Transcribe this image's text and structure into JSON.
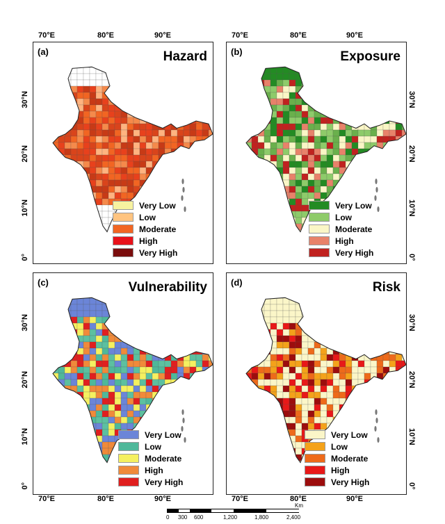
{
  "figure": {
    "x_ticks": [
      "70°E",
      "80°E",
      "90°E"
    ],
    "y_ticks": [
      "30°N",
      "20°N",
      "10°N",
      "0°"
    ],
    "panels": [
      {
        "id": "a",
        "label": "(a)",
        "title": "Hazard",
        "fill_colors": [
          "#f26522",
          "#e8411c",
          "#d9441b",
          "#f58a4b",
          "#c73a16",
          "#ffb380",
          "#ffffff"
        ],
        "legend": [
          {
            "label": "Very Low",
            "color": "#f7f2a0"
          },
          {
            "label": "Low",
            "color": "#ffc480"
          },
          {
            "label": "Moderate",
            "color": "#f26522"
          },
          {
            "label": "High",
            "color": "#e8121a"
          },
          {
            "label": "Very High",
            "color": "#7a0d0d"
          }
        ]
      },
      {
        "id": "b",
        "label": "(b)",
        "title": "Exposure",
        "fill_colors": [
          "#238b23",
          "#8ecb6a",
          "#faf6c6",
          "#e8826a",
          "#c0221f",
          "#6ab04c"
        ],
        "legend": [
          {
            "label": "Very Low",
            "color": "#238b23"
          },
          {
            "label": "Low",
            "color": "#8ecb6a"
          },
          {
            "label": "Moderate",
            "color": "#faf6c6"
          },
          {
            "label": "High",
            "color": "#e8826a"
          },
          {
            "label": "Very High",
            "color": "#c0221f"
          }
        ]
      },
      {
        "id": "c",
        "label": "(c)",
        "title": "Vulnerability",
        "fill_colors": [
          "#6b85d8",
          "#4fb89a",
          "#f5f060",
          "#f08a3a",
          "#e01f1f",
          "#5cc0a0"
        ],
        "legend": [
          {
            "label": "Very Low",
            "color": "#6b85d8"
          },
          {
            "label": "Low",
            "color": "#4fb89a"
          },
          {
            "label": "Moderate",
            "color": "#f5f060"
          },
          {
            "label": "High",
            "color": "#f08a3a"
          },
          {
            "label": "Very High",
            "color": "#e01f1f"
          }
        ]
      },
      {
        "id": "d",
        "label": "(d)",
        "title": "Risk",
        "fill_colors": [
          "#fbf6c8",
          "#f4a21a",
          "#ee6a1a",
          "#e81818",
          "#9c0d0d",
          "#fbf6c8"
        ],
        "legend": [
          {
            "label": "Very Low",
            "color": "#fbf6c8"
          },
          {
            "label": "Low",
            "color": "#f4a21a"
          },
          {
            "label": "Moderate",
            "color": "#ee6a1a"
          },
          {
            "label": "High",
            "color": "#e81818"
          },
          {
            "label": "Very High",
            "color": "#9c0d0d"
          }
        ]
      }
    ],
    "scale": {
      "unit": "Km",
      "labels": [
        "0",
        "300",
        "600",
        "1,200",
        "1,800",
        "2,400"
      ]
    }
  }
}
